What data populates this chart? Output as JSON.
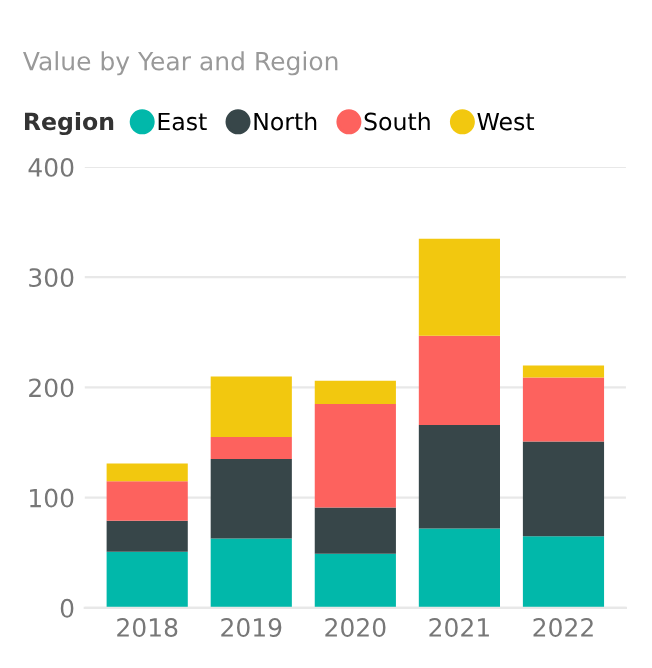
{
  "chart_data": {
    "type": "bar",
    "stacked": true,
    "title": "Value by Year and Region",
    "legend_title": "Region",
    "categories": [
      "2018",
      "2019",
      "2020",
      "2021",
      "2022"
    ],
    "series": [
      {
        "name": "East",
        "color": "#01b8aa",
        "values": [
          51,
          63,
          49,
          72,
          65
        ]
      },
      {
        "name": "North",
        "color": "#374649",
        "values": [
          28,
          72,
          42,
          94,
          86
        ]
      },
      {
        "name": "South",
        "color": "#fd625e",
        "values": [
          36,
          20,
          94,
          81,
          58
        ]
      },
      {
        "name": "West",
        "color": "#f2c80f",
        "values": [
          16,
          55,
          21,
          88,
          11
        ]
      }
    ],
    "ylim": [
      0,
      400
    ],
    "yticks": [
      0,
      100,
      200,
      300,
      400
    ],
    "grid": "y",
    "legend": "top left"
  }
}
